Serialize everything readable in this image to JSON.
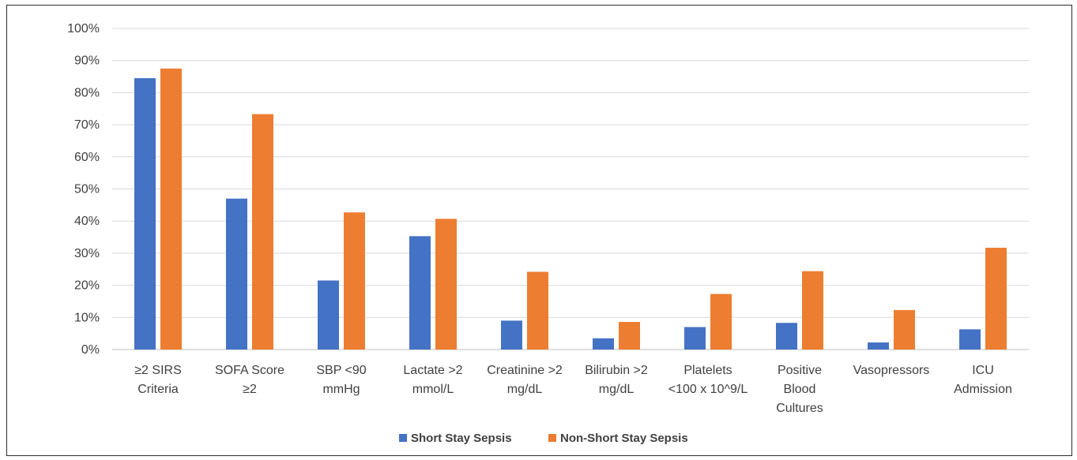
{
  "chart_data": {
    "type": "bar",
    "categories": [
      [
        "≥2 SIRS",
        "Criteria"
      ],
      [
        "SOFA Score",
        "≥2"
      ],
      [
        "SBP <90",
        "mmHg"
      ],
      [
        "Lactate >2",
        "mmol/L"
      ],
      [
        "Creatinine >2",
        "mg/dL"
      ],
      [
        "Bilirubin >2",
        "mg/dL"
      ],
      [
        "Platelets",
        "<100 x 10^9/L"
      ],
      [
        "Positive",
        "Blood",
        "Cultures"
      ],
      [
        "Vasopressors"
      ],
      [
        "ICU",
        "Admission"
      ]
    ],
    "series": [
      {
        "name": "Short Stay Sepsis",
        "color": "#4472C4",
        "values": [
          84.5,
          47,
          21.5,
          35.3,
          9,
          3.5,
          7,
          8.3,
          2.2,
          6.3
        ]
      },
      {
        "name": "Non-Short Stay Sepsis",
        "color": "#ED7D31",
        "values": [
          87.5,
          73.3,
          42.7,
          40.7,
          24.2,
          8.6,
          17.3,
          24.4,
          12.3,
          31.7
        ]
      }
    ],
    "yticks": [
      "0%",
      "10%",
      "20%",
      "30%",
      "40%",
      "50%",
      "60%",
      "70%",
      "80%",
      "90%",
      "100%"
    ],
    "ylim": [
      0,
      100
    ],
    "grid": true,
    "legend_position": "bottom"
  }
}
